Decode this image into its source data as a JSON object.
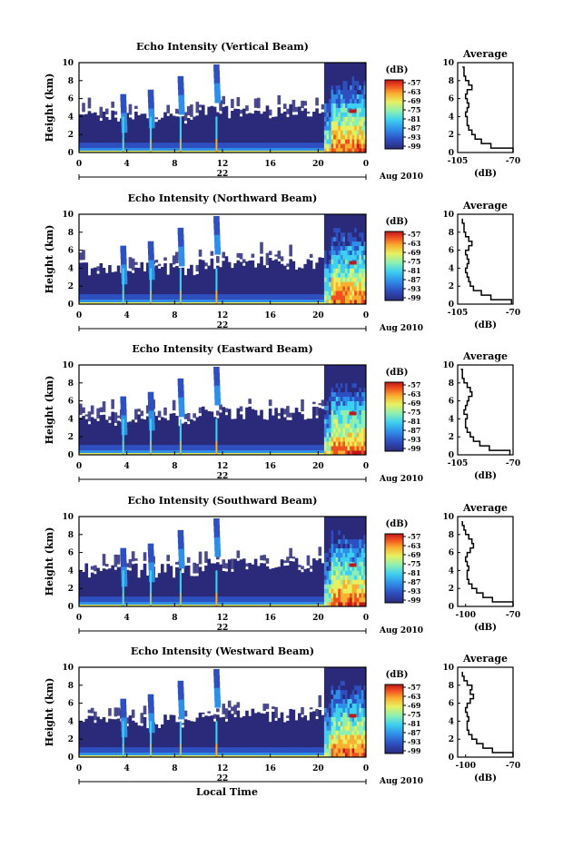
{
  "figure": {
    "x_axis_label": "Local Time",
    "date_label": "Aug 2010",
    "day_label": "22",
    "colorbar_unit": "(dB)",
    "colorbar_ticks": [
      "-57",
      "-63",
      "-69",
      "-75",
      "-81",
      "-87",
      "-93",
      "-99"
    ],
    "colors": {
      "colormap": [
        "#2b2a7a",
        "#2d4fc0",
        "#2f8ee8",
        "#3fd0f0",
        "#8ef0b0",
        "#e8f060",
        "#f8b030",
        "#f05020",
        "#c01818"
      ]
    }
  },
  "chart_data": [
    {
      "type": "heatmap",
      "title": "Echo Intensity (Vertical Beam)",
      "ylabel": "Height (km)",
      "xlabel": "",
      "x_ticks": [
        "0",
        "4",
        "8",
        "12",
        "16",
        "20",
        "0"
      ],
      "y_ticks": [
        "0",
        "2",
        "4",
        "6",
        "8",
        "10"
      ],
      "ylim": [
        0,
        10
      ],
      "xlim": [
        0,
        24
      ],
      "avg": {
        "title": "Average",
        "xlabel": "(dB)",
        "x_ticks": [
          "-105",
          "-70"
        ],
        "xlim": [
          -105,
          -70
        ],
        "heights": [
          0,
          0.5,
          1,
          1.5,
          2,
          2.5,
          3,
          3.5,
          4,
          4.5,
          5,
          5.5,
          6,
          6.5,
          7,
          7.5,
          8,
          8.5,
          9,
          9.5
        ],
        "values": [
          -70,
          -84,
          -90,
          -94,
          -96,
          -98,
          -99,
          -99,
          -100,
          -99,
          -98,
          -99,
          -100,
          -99,
          -96,
          -98,
          -100,
          -101,
          -101,
          -102
        ]
      }
    },
    {
      "type": "heatmap",
      "title": "Echo Intensity (Northward Beam)",
      "ylabel": "Height (km)",
      "xlabel": "",
      "x_ticks": [
        "0",
        "4",
        "8",
        "12",
        "16",
        "20",
        "0"
      ],
      "y_ticks": [
        "0",
        "2",
        "4",
        "6",
        "8",
        "10"
      ],
      "ylim": [
        0,
        10
      ],
      "xlim": [
        0,
        24
      ],
      "avg": {
        "title": "Average",
        "xlabel": "(dB)",
        "x_ticks": [
          "-105",
          "-70"
        ],
        "xlim": [
          -105,
          -70
        ],
        "heights": [
          0,
          0.5,
          1,
          1.5,
          2,
          2.5,
          3,
          3.5,
          4,
          4.5,
          5,
          5.5,
          6,
          6.5,
          7,
          7.5,
          8,
          8.5,
          9,
          9.5
        ],
        "values": [
          -71,
          -84,
          -90,
          -95,
          -97,
          -98,
          -99,
          -100,
          -99,
          -98,
          -99,
          -100,
          -98,
          -96,
          -98,
          -100,
          -101,
          -101,
          -102,
          -102
        ]
      }
    },
    {
      "type": "heatmap",
      "title": "Echo Intensity (Eastward Beam)",
      "ylabel": "Height (km)",
      "xlabel": "",
      "x_ticks": [
        "0",
        "4",
        "8",
        "12",
        "16",
        "20",
        "0"
      ],
      "y_ticks": [
        "0",
        "2",
        "4",
        "6",
        "8",
        "10"
      ],
      "ylim": [
        0,
        10
      ],
      "xlim": [
        0,
        24
      ],
      "avg": {
        "title": "Average",
        "xlabel": "(dB)",
        "x_ticks": [
          "-105",
          "-70"
        ],
        "xlim": [
          -105,
          -70
        ],
        "heights": [
          0,
          0.5,
          1,
          1.5,
          2,
          2.5,
          3,
          3.5,
          4,
          4.5,
          5,
          5.5,
          6,
          6.5,
          7,
          7.5,
          8,
          8.5,
          9,
          9.5
        ],
        "values": [
          -72,
          -85,
          -91,
          -95,
          -97,
          -99,
          -100,
          -100,
          -99,
          -101,
          -100,
          -99,
          -98,
          -96,
          -97,
          -99,
          -101,
          -102,
          -102,
          -103
        ]
      }
    },
    {
      "type": "heatmap",
      "title": "Echo Intensity (Southward Beam)",
      "ylabel": "Height (km)",
      "xlabel": "",
      "x_ticks": [
        "0",
        "4",
        "8",
        "12",
        "16",
        "20",
        "0"
      ],
      "y_ticks": [
        "0",
        "2",
        "4",
        "6",
        "8",
        "10"
      ],
      "ylim": [
        0,
        10
      ],
      "xlim": [
        0,
        24
      ],
      "avg": {
        "title": "Average",
        "xlabel": "(dB)",
        "x_ticks": [
          "-100",
          "-70"
        ],
        "xlim": [
          -105,
          -70
        ],
        "heights": [
          0,
          0.5,
          1,
          1.5,
          2,
          2.5,
          3,
          3.5,
          4,
          4.5,
          5,
          5.5,
          6,
          6.5,
          7,
          7.5,
          8,
          8.5,
          9,
          9.5
        ],
        "values": [
          -70,
          -83,
          -89,
          -93,
          -96,
          -98,
          -99,
          -99,
          -98,
          -99,
          -100,
          -99,
          -97,
          -95,
          -96,
          -98,
          -100,
          -101,
          -102,
          -102
        ]
      }
    },
    {
      "type": "heatmap",
      "title": "Echo Intensity (Westward Beam)",
      "ylabel": "Height (km)",
      "xlabel": "",
      "x_ticks": [
        "0",
        "4",
        "8",
        "12",
        "16",
        "20",
        "0"
      ],
      "y_ticks": [
        "0",
        "2",
        "4",
        "6",
        "8",
        "10"
      ],
      "ylim": [
        0,
        10
      ],
      "xlim": [
        0,
        24
      ],
      "avg": {
        "title": "Average",
        "xlabel": "(dB)",
        "x_ticks": [
          "-100",
          "-70"
        ],
        "xlim": [
          -105,
          -70
        ],
        "heights": [
          0,
          0.5,
          1,
          1.5,
          2,
          2.5,
          3,
          3.5,
          4,
          4.5,
          5,
          5.5,
          6,
          6.5,
          7,
          7.5,
          8,
          8.5,
          9,
          9.5
        ],
        "values": [
          -70,
          -83,
          -89,
          -93,
          -96,
          -98,
          -99,
          -99,
          -98,
          -99,
          -100,
          -99,
          -97,
          -95,
          -97,
          -96,
          -99,
          -101,
          -102,
          -102
        ]
      }
    }
  ]
}
